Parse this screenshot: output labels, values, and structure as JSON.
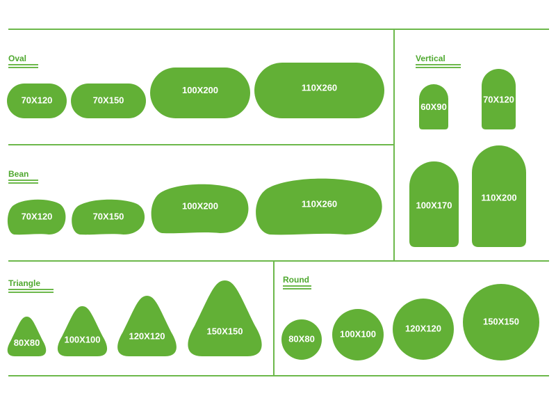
{
  "colors": {
    "shape": "#62b036",
    "line": "#6cb84a",
    "header": "#4ea82e"
  },
  "sections": {
    "oval": {
      "title": "Oval",
      "items": [
        "70X120",
        "70X150",
        "100X200",
        "110X260"
      ]
    },
    "bean": {
      "title": "Bean",
      "items": [
        "70X120",
        "70X150",
        "100X200",
        "110X260"
      ]
    },
    "vertical": {
      "title": "Vertical",
      "items": [
        "60X90",
        "70X120",
        "100X170",
        "110X200"
      ]
    },
    "triangle": {
      "title": "Triangle",
      "items": [
        "80X80",
        "100X100",
        "120X120",
        "150X150"
      ]
    },
    "round": {
      "title": "Round",
      "items": [
        "80X80",
        "100X100",
        "120X120",
        "150X150"
      ]
    }
  }
}
